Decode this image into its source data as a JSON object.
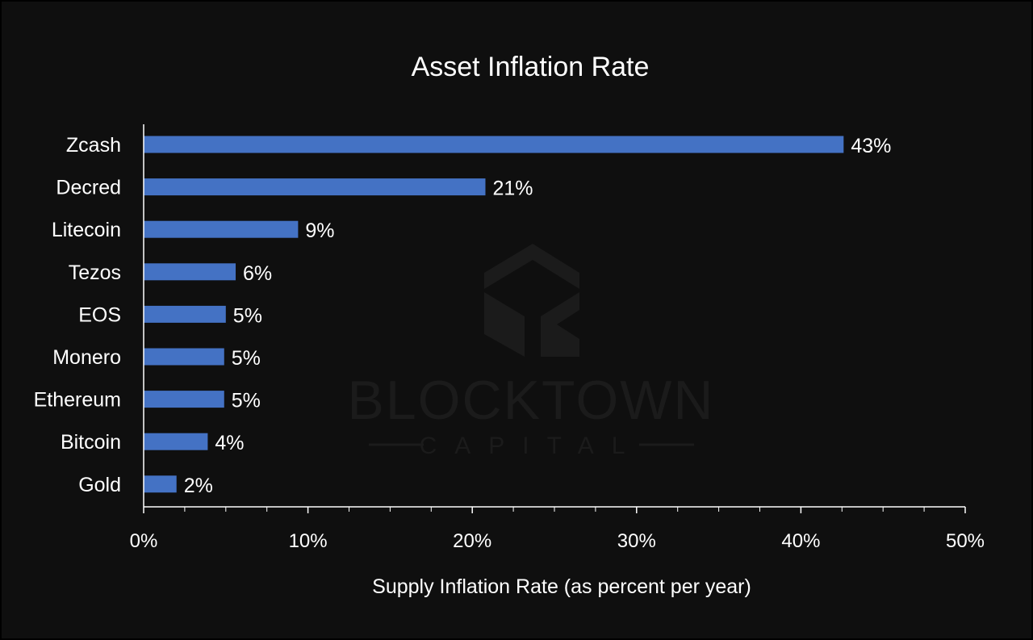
{
  "colors": {
    "background": "#0f0f0f",
    "bar": "#4472c4",
    "text": "#ffffff",
    "axis": "#ffffff",
    "watermark": "#1b1b1b"
  },
  "watermark": {
    "name": "BLOCKTOWN",
    "sub": "CAPITAL"
  },
  "chart_data": {
    "type": "bar",
    "orientation": "horizontal",
    "title": "Asset Inflation Rate",
    "xlabel": "Supply Inflation Rate (as percent per year)",
    "ylabel": "",
    "categories": [
      "Zcash",
      "Decred",
      "Litecoin",
      "Tezos",
      "EOS",
      "Monero",
      "Ethereum",
      "Bitcoin",
      "Gold"
    ],
    "values": [
      42.6,
      20.8,
      9.4,
      5.6,
      5.0,
      4.9,
      4.9,
      3.9,
      2.0
    ],
    "data_labels": [
      "43%",
      "21%",
      "9%",
      "6%",
      "5%",
      "5%",
      "5%",
      "4%",
      "2%"
    ],
    "xlim": [
      0,
      50
    ],
    "x_ticks": [
      0,
      10,
      20,
      30,
      40,
      50
    ],
    "x_tick_labels": [
      "0%",
      "10%",
      "20%",
      "30%",
      "40%",
      "50%"
    ],
    "x_minor_step": 2.5,
    "grid": false,
    "legend": "none"
  }
}
